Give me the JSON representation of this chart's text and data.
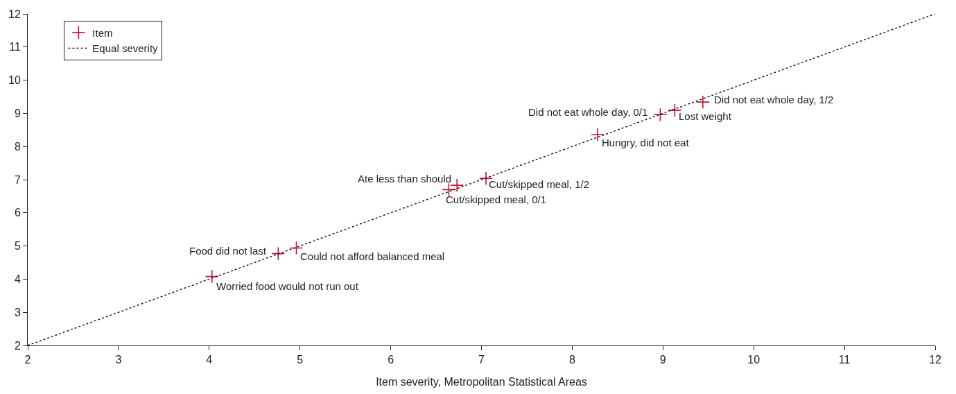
{
  "chart_data": {
    "type": "scatter",
    "xlabel": "Item severity, Metropolitan Statistical Areas",
    "xlim": [
      2,
      12
    ],
    "xticks": [
      2,
      3,
      4,
      5,
      6,
      7,
      8,
      9,
      10,
      11,
      12
    ],
    "ylim": [
      2,
      12
    ],
    "yticks": [
      2,
      3,
      4,
      5,
      6,
      7,
      8,
      9,
      10,
      11,
      12
    ],
    "legend": "top left",
    "series": [
      {
        "name": "Item",
        "marker": "cross",
        "color": "#c8102e",
        "x": [
          4.03,
          4.76,
          4.96,
          6.64,
          6.73,
          7.05,
          8.28,
          8.97,
          9.13,
          9.44
        ],
        "values": [
          4.08,
          4.77,
          4.94,
          6.7,
          6.83,
          7.04,
          8.36,
          8.96,
          9.09,
          9.34
        ]
      },
      {
        "name": "Equal severity",
        "type": "line",
        "color": "#000000",
        "line_style": "dotted",
        "marker": "none",
        "x": [
          2,
          12
        ],
        "values": [
          2,
          12
        ]
      }
    ],
    "annotations": [
      {
        "text": "Worried food would not run out",
        "x": 4.03,
        "y": 4.08
      },
      {
        "text": "Food did not last",
        "x": 4.76,
        "y": 4.77
      },
      {
        "text": "Could not afford balanced meal",
        "x": 4.96,
        "y": 4.94
      },
      {
        "text": "Cut/skipped meal, 0/1",
        "x": 6.64,
        "y": 6.7
      },
      {
        "text": "Ate less than should",
        "x": 6.73,
        "y": 6.83
      },
      {
        "text": "Cut/skipped meal, 1/2",
        "x": 7.05,
        "y": 7.04
      },
      {
        "text": "Hungry, did not eat",
        "x": 8.28,
        "y": 8.36
      },
      {
        "text": "Did not eat whole day, 0/1",
        "x": 8.97,
        "y": 8.96
      },
      {
        "text": "Lost weight",
        "x": 9.13,
        "y": 9.09
      },
      {
        "text": "Did not eat whole day, 1/2",
        "x": 9.44,
        "y": 9.34
      }
    ]
  }
}
